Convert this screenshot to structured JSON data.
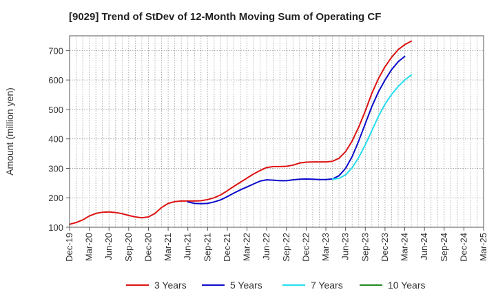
{
  "chart_data": {
    "type": "line",
    "title": "[9029]  Trend of StDev of 12-Month Moving Sum of Operating CF",
    "ylabel": "Amount (million yen)",
    "xlabel": "",
    "ylim": [
      100,
      750
    ],
    "yticks": [
      100,
      200,
      300,
      400,
      500,
      600,
      700
    ],
    "xticks": [
      "Dec-19",
      "Mar-20",
      "Jun-20",
      "Sep-20",
      "Dec-20",
      "Mar-21",
      "Jun-21",
      "Sep-21",
      "Dec-21",
      "Mar-22",
      "Jun-22",
      "Sep-22",
      "Dec-22",
      "Mar-23",
      "Jun-23",
      "Sep-23",
      "Dec-23",
      "Mar-24",
      "Jun-24",
      "Sep-24",
      "Dec-24",
      "Mar-25"
    ],
    "grid": true,
    "legend_position": "bottom",
    "series": [
      {
        "name": "3 Years",
        "color": "#dd1111",
        "start_index": 0,
        "values": [
          110,
          116,
          125,
          138,
          147,
          151,
          152,
          150,
          146,
          140,
          135,
          132,
          135,
          147,
          167,
          181,
          187,
          189,
          189,
          189,
          190,
          194,
          200,
          210,
          224,
          239,
          253,
          267,
          281,
          293,
          303,
          306,
          306,
          307,
          311,
          318,
          321,
          322,
          322,
          322,
          324,
          334,
          357,
          393,
          440,
          495,
          555,
          605,
          645,
          677,
          703,
          720,
          732
        ]
      },
      {
        "name": "5 Years",
        "color": "#0a0acc",
        "start_index": 18,
        "values": [
          186,
          181,
          180,
          181,
          186,
          193,
          204,
          216,
          227,
          237,
          247,
          257,
          261,
          260,
          258,
          258,
          261,
          263,
          264,
          263,
          262,
          262,
          264,
          275,
          300,
          340,
          393,
          452,
          510,
          560,
          600,
          635,
          662,
          680
        ]
      },
      {
        "name": "7 Years",
        "color": "#22ddee",
        "start_index": 40,
        "values": [
          263,
          266,
          278,
          302,
          337,
          380,
          428,
          477,
          518,
          551,
          578,
          600,
          617
        ]
      },
      {
        "name": "10 Years",
        "color": "#228822",
        "start_index": 0,
        "values": []
      }
    ]
  }
}
